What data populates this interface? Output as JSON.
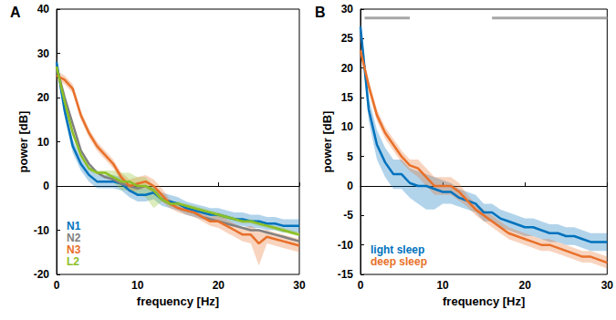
{
  "chart_data": [
    {
      "type": "line",
      "label": "A",
      "x_label": "frequency [Hz]",
      "y_label": "power [dB]",
      "xlim": [
        0,
        30
      ],
      "xticks": [
        0,
        10,
        20,
        30
      ],
      "ylim": [
        -20,
        40
      ],
      "yticks": [
        -20,
        -10,
        0,
        10,
        20,
        30,
        40
      ],
      "legend": "lower left",
      "x": [
        0,
        1,
        2,
        3,
        4,
        5,
        6,
        7,
        8,
        9,
        10,
        11,
        12,
        13,
        14,
        15,
        16,
        17,
        18,
        19,
        20,
        21,
        22,
        23,
        24,
        25,
        26,
        27,
        28,
        29,
        30
      ],
      "series": [
        {
          "name": "N1",
          "color": "#0072bd",
          "values": [
            28,
            17,
            9,
            5,
            2.5,
            1,
            1,
            1,
            0.5,
            -1,
            -2,
            -2,
            -1.5,
            -3,
            -3.5,
            -4,
            -5,
            -5.5,
            -6,
            -6.5,
            -6.5,
            -7,
            -7.5,
            -7.5,
            -8,
            -8,
            -8.5,
            -8.5,
            -9,
            -9,
            -9
          ],
          "lower": [
            27,
            15.5,
            7.5,
            3.5,
            1,
            -0.5,
            -0.5,
            -0.5,
            -1,
            -2.5,
            -3.5,
            -3.5,
            -3,
            -4.5,
            -5,
            -5.5,
            -6.5,
            -7,
            -7.5,
            -8,
            -8,
            -8.5,
            -9,
            -9,
            -9.5,
            -9.5,
            -10,
            -10,
            -10.5,
            -10.5,
            -10.5
          ],
          "upper": [
            29,
            18.5,
            10.5,
            6.5,
            4,
            2.5,
            2.5,
            2.5,
            2,
            0.5,
            -0.5,
            -0.5,
            0,
            -1.5,
            -2,
            -2.5,
            -3.5,
            -4,
            -4.5,
            -5,
            -5,
            -5.5,
            -6,
            -6,
            -6.5,
            -6.5,
            -7,
            -7,
            -7.5,
            -7.5,
            -7.5
          ]
        },
        {
          "name": "N2",
          "color": "#808080",
          "values": [
            27,
            20,
            14,
            8,
            5,
            3,
            2,
            1.5,
            0.5,
            0,
            -0.5,
            0,
            -1,
            -3,
            -4,
            -5,
            -5.5,
            -6,
            -7,
            -7.5,
            -8,
            -8.5,
            -9,
            -9.5,
            -10,
            -10,
            -10.5,
            -11,
            -11.5,
            -12,
            -12.5
          ]
        },
        {
          "name": "N3",
          "color": "#e8702a",
          "values": [
            25,
            24,
            22,
            16,
            12,
            9,
            7,
            5,
            2,
            0,
            0.5,
            1,
            0,
            -2,
            -4,
            -5,
            -5.5,
            -6,
            -7,
            -8,
            -8,
            -9,
            -10,
            -11,
            -11,
            -13,
            -11.5,
            -12,
            -12.5,
            -13,
            -13.5
          ],
          "lower": [
            24,
            23,
            21,
            15,
            11,
            8,
            6,
            4,
            1,
            -1.5,
            -1,
            -0.5,
            -1.5,
            -3.5,
            -5,
            -6,
            -6.5,
            -7,
            -8,
            -9,
            -9.5,
            -10.5,
            -11.5,
            -12.5,
            -13,
            -18,
            -13,
            -13.5,
            -14,
            -14.5,
            -15
          ],
          "upper": [
            26,
            25,
            23,
            17,
            13,
            10,
            8,
            6,
            3,
            1.5,
            2,
            2.5,
            1.5,
            -0.5,
            -3,
            -4,
            -4.5,
            -5,
            -6,
            -7,
            -6.5,
            -7.5,
            -8.5,
            -9.5,
            -9,
            -10,
            -10,
            -10.5,
            -11,
            -11.5,
            -12
          ]
        },
        {
          "name": "L2",
          "color": "#8cbf26",
          "values": [
            27,
            19,
            12,
            7,
            4,
            3,
            3,
            2,
            1,
            1,
            0,
            0,
            -1,
            -3,
            -4,
            -4,
            -4.5,
            -5,
            -5.5,
            -6,
            -6.5,
            -7,
            -7.5,
            -8,
            -8,
            -8.5,
            -9,
            -9.5,
            -10,
            -10.5,
            -11
          ],
          "lower": [
            26.5,
            18.5,
            11.5,
            6.5,
            3.5,
            2.5,
            2.5,
            1,
            -1,
            -1,
            -2,
            -2.5,
            -5,
            -3.5,
            -4.5,
            -4.5,
            -5,
            -5.5,
            -6,
            -6.5,
            -7,
            -7.5,
            -8,
            -8.5,
            -8.5,
            -9,
            -9.5,
            -10,
            -10.5,
            -11,
            -11.5
          ],
          "upper": [
            27.5,
            19.5,
            12.5,
            7.5,
            4.5,
            3.5,
            3.5,
            3.5,
            3,
            3,
            2,
            2,
            0,
            -2.5,
            -3.5,
            -3.5,
            -4,
            -4.5,
            -5,
            -5.5,
            -6,
            -6.5,
            -7,
            -7.5,
            -7.5,
            -8,
            -8.5,
            -9,
            -9.5,
            -10,
            -10.5
          ]
        }
      ]
    },
    {
      "type": "line",
      "label": "B",
      "x_label": "frequency [Hz]",
      "y_label": "power [dB]",
      "xlim": [
        0,
        30
      ],
      "xticks": [
        0,
        10,
        20,
        30
      ],
      "ylim": [
        -15,
        30
      ],
      "yticks": [
        -15,
        -10,
        -5,
        0,
        5,
        10,
        15,
        20,
        25,
        30
      ],
      "legend": "lower left",
      "x": [
        0,
        1,
        2,
        3,
        4,
        5,
        6,
        7,
        8,
        9,
        10,
        11,
        12,
        13,
        14,
        15,
        16,
        17,
        18,
        19,
        20,
        21,
        22,
        23,
        24,
        25,
        26,
        27,
        28,
        29,
        30
      ],
      "significance": {
        "y": 28.5,
        "ranges": [
          [
            0.5,
            6
          ],
          [
            16,
            30
          ]
        ]
      },
      "series": [
        {
          "name": "light sleep",
          "color": "#0072bd",
          "values": [
            27,
            13,
            7,
            4,
            2,
            2,
            0.5,
            0,
            0,
            -0.5,
            -1,
            -1,
            -2,
            -2.5,
            -3,
            -4.5,
            -4.5,
            -5.5,
            -6,
            -6.5,
            -7,
            -7,
            -7.5,
            -8,
            -8,
            -8.5,
            -8.5,
            -9,
            -9.5,
            -9.5,
            -9.5
          ],
          "lower": [
            26,
            11,
            4.5,
            1.5,
            -0.5,
            -0.5,
            -2,
            -3,
            -4,
            -4,
            -3,
            -3,
            -3.5,
            -4,
            -4.5,
            -6,
            -6,
            -7,
            -7.5,
            -8,
            -8.5,
            -8.5,
            -9,
            -9.5,
            -9.5,
            -10,
            -10,
            -10.5,
            -11,
            -11,
            -11
          ],
          "upper": [
            28,
            15,
            9.5,
            6.5,
            4.5,
            4.5,
            3,
            2.5,
            2,
            1.5,
            1,
            0.5,
            -0.5,
            -1,
            -1.5,
            -3,
            -3,
            -4,
            -4.5,
            -5,
            -5.5,
            -5.5,
            -6,
            -6.5,
            -6.5,
            -7,
            -7,
            -7.5,
            -8,
            -8,
            -8
          ]
        },
        {
          "name": "deep sleep",
          "color": "#e8702a",
          "values": [
            23,
            17,
            12,
            9,
            7,
            5,
            3.5,
            3,
            1.5,
            0,
            0,
            0,
            -1,
            -2.5,
            -4,
            -5,
            -6,
            -7,
            -8,
            -8.5,
            -9,
            -9.5,
            -10,
            -10,
            -10.5,
            -11,
            -11.5,
            -12,
            -12,
            -12.5,
            -13
          ],
          "lower": [
            22,
            16,
            11,
            8,
            6,
            4,
            2.5,
            1.5,
            0,
            -1.5,
            -1.5,
            -1.5,
            -2.5,
            -3.5,
            -5,
            -6,
            -7,
            -8,
            -9,
            -9.5,
            -10,
            -10.5,
            -11,
            -11,
            -11.5,
            -12,
            -12.5,
            -13,
            -13,
            -13.5,
            -14
          ],
          "upper": [
            24,
            18,
            13,
            10,
            8,
            6,
            4.5,
            4.5,
            3,
            1.5,
            1.5,
            1.5,
            0.5,
            -1.5,
            -3,
            -4,
            -5,
            -6,
            -7,
            -7.5,
            -8,
            -8.5,
            -9,
            -9,
            -9.5,
            -10,
            -10.5,
            -11,
            -11,
            -11.5,
            -12
          ]
        }
      ]
    }
  ]
}
